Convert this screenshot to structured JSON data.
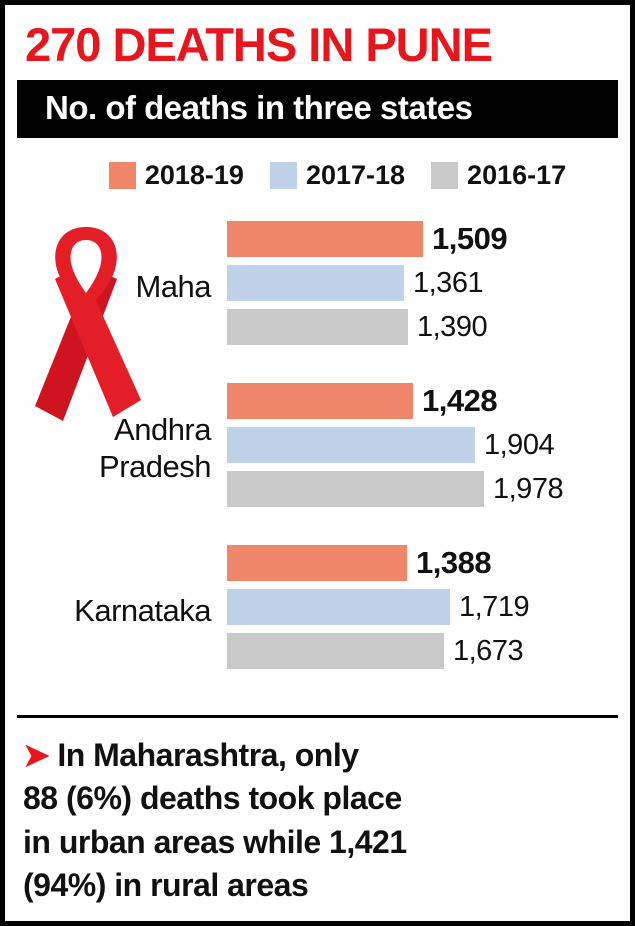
{
  "header": {
    "title": "270 DEATHS IN PUNE"
  },
  "chart_header": {
    "title": "No. of deaths in three states"
  },
  "chart_data": {
    "type": "bar",
    "orientation": "horizontal",
    "title": "No. of deaths in three states",
    "categories": [
      "Maha",
      "Andhra Pradesh",
      "Karnataka"
    ],
    "series": [
      {
        "name": "2018-19",
        "color": "#f0876a",
        "values": [
          1509,
          1428,
          1388
        ],
        "labels": [
          "1,509",
          "1,428",
          "1,388"
        ]
      },
      {
        "name": "2017-18",
        "color": "#bfd2ea",
        "values": [
          1361,
          1904,
          1719
        ],
        "labels": [
          "1,361",
          "1,904",
          "1,719"
        ]
      },
      {
        "name": "2016-17",
        "color": "#c9c9c9",
        "values": [
          1390,
          1978,
          1673
        ],
        "labels": [
          "1,390",
          "1,978",
          "1,673"
        ]
      }
    ],
    "xmax": 2000,
    "grid": false,
    "legend_position": "top"
  },
  "footnote": {
    "bullet": "➤",
    "text": "In Maharashtra, only\n88 (6%) deaths took place\nin urban areas while 1,421\n(94%) in rural areas"
  },
  "icons": {
    "ribbon": "red-awareness-ribbon",
    "bullet": "right-arrowhead"
  },
  "colors": {
    "headline_red": "#e8151c",
    "ribbon_red": "#e31e26",
    "ribbon_red_dark": "#cf1420",
    "title_bar_bg": "#000000",
    "title_bar_text": "#ffffff"
  }
}
